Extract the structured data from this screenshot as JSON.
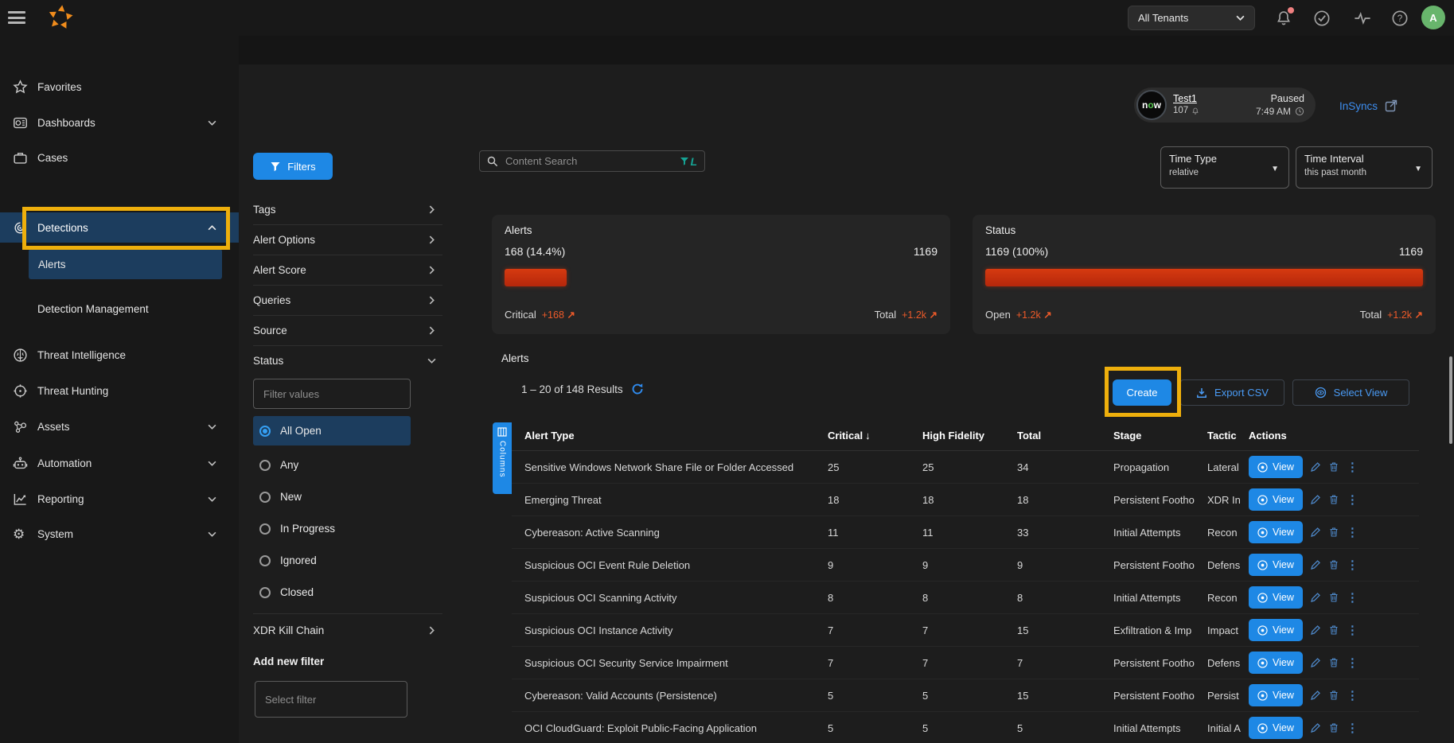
{
  "topbar": {
    "tenant_selector": "All Tenants",
    "avatar_initial": "A"
  },
  "sidebar": {
    "items": [
      {
        "label": "Favorites"
      },
      {
        "label": "Dashboards"
      },
      {
        "label": "Cases"
      },
      {
        "label": "Detections"
      },
      {
        "label": "Threat Intelligence"
      },
      {
        "label": "Threat Hunting"
      },
      {
        "label": "Assets"
      },
      {
        "label": "Automation"
      },
      {
        "label": "Reporting"
      },
      {
        "label": "System"
      }
    ],
    "detections_children": [
      {
        "label": "Alerts"
      },
      {
        "label": "Detection Management"
      }
    ]
  },
  "filters_panel": {
    "filters_button": "Filters",
    "groups": [
      {
        "label": "Tags"
      },
      {
        "label": "Alert Options"
      },
      {
        "label": "Alert Score"
      },
      {
        "label": "Queries"
      },
      {
        "label": "Source"
      }
    ],
    "status_group": {
      "label": "Status",
      "filter_input_placeholder": "Filter values",
      "options": [
        {
          "label": "All Open",
          "selected": true
        },
        {
          "label": "Any",
          "selected": false
        },
        {
          "label": "New",
          "selected": false
        },
        {
          "label": "In Progress",
          "selected": false
        },
        {
          "label": "Ignored",
          "selected": false
        },
        {
          "label": "Closed",
          "selected": false
        }
      ]
    },
    "xdr_kill_chain_label": "XDR Kill Chain",
    "add_new_filter_label": "Add new filter",
    "select_filter_placeholder": "Select filter"
  },
  "header": {
    "sensor_badge": {
      "logo_text_n": "n",
      "logo_text_o": "o",
      "logo_text_w": "w",
      "name": "Test1",
      "count": "107",
      "state": "Paused",
      "time": "7:49 AM"
    },
    "insyncs_link": "InSyncs",
    "time_type": {
      "label": "Time Type",
      "value": "relative"
    },
    "time_interval": {
      "label": "Time Interval",
      "value": "this past month"
    }
  },
  "search": {
    "placeholder": "Content Search"
  },
  "summary_cards": [
    {
      "title": "Alerts",
      "left_value": "168 (14.4%)",
      "right_value": "1169",
      "bar_pct": 14.4,
      "left_label": "Critical",
      "left_trend": "+168",
      "right_label": "Total",
      "right_trend": "+1.2k"
    },
    {
      "title": "Status",
      "left_value": "1169 (100%)",
      "right_value": "1169",
      "bar_pct": 100,
      "left_label": "Open",
      "left_trend": "+1.2k",
      "right_label": "Total",
      "right_trend": "+1.2k"
    }
  ],
  "table_section": {
    "title": "Alerts",
    "results_text": "1 – 20 of 148 Results",
    "create_button": "Create",
    "export_button": "Export CSV",
    "select_view_button": "Select View",
    "columns_tab": "Columns",
    "view_button": "View",
    "columns": [
      "Alert Type",
      "Critical",
      "High Fidelity",
      "Total",
      "Stage",
      "Tactic",
      "Actions"
    ],
    "rows": [
      {
        "alert_type": "Sensitive Windows Network Share File or Folder Accessed",
        "critical": "25",
        "high_fidelity": "25",
        "total": "34",
        "stage": "Propagation",
        "tactic": "Lateral"
      },
      {
        "alert_type": "Emerging Threat",
        "critical": "18",
        "high_fidelity": "18",
        "total": "18",
        "stage": "Persistent Footho",
        "tactic": "XDR In"
      },
      {
        "alert_type": "Cybereason: Active Scanning",
        "critical": "11",
        "high_fidelity": "11",
        "total": "33",
        "stage": "Initial Attempts",
        "tactic": "Recon"
      },
      {
        "alert_type": "Suspicious OCI Event Rule Deletion",
        "critical": "9",
        "high_fidelity": "9",
        "total": "9",
        "stage": "Persistent Footho",
        "tactic": "Defens"
      },
      {
        "alert_type": "Suspicious OCI Scanning Activity",
        "critical": "8",
        "high_fidelity": "8",
        "total": "8",
        "stage": "Initial Attempts",
        "tactic": "Recon"
      },
      {
        "alert_type": "Suspicious OCI Instance Activity",
        "critical": "7",
        "high_fidelity": "7",
        "total": "15",
        "stage": "Exfiltration & Imp",
        "tactic": "Impact"
      },
      {
        "alert_type": "Suspicious OCI Security Service Impairment",
        "critical": "7",
        "high_fidelity": "7",
        "total": "7",
        "stage": "Persistent Footho",
        "tactic": "Defens"
      },
      {
        "alert_type": "Cybereason: Valid Accounts (Persistence)",
        "critical": "5",
        "high_fidelity": "5",
        "total": "15",
        "stage": "Persistent Footho",
        "tactic": "Persist"
      },
      {
        "alert_type": "OCI CloudGuard: Exploit Public-Facing Application",
        "critical": "5",
        "high_fidelity": "5",
        "total": "5",
        "stage": "Initial Attempts",
        "tactic": "Initial A"
      }
    ]
  },
  "colors": {
    "accent_blue": "#1e88e5",
    "active_nav_blue": "#1c3d5e",
    "annotation_yellow": "#eeaf0c",
    "bar_red": "#c7300d",
    "trend_orange": "#ed5a29",
    "link_blue": "#3d8ef0",
    "search_filter_teal": "#16a394"
  }
}
